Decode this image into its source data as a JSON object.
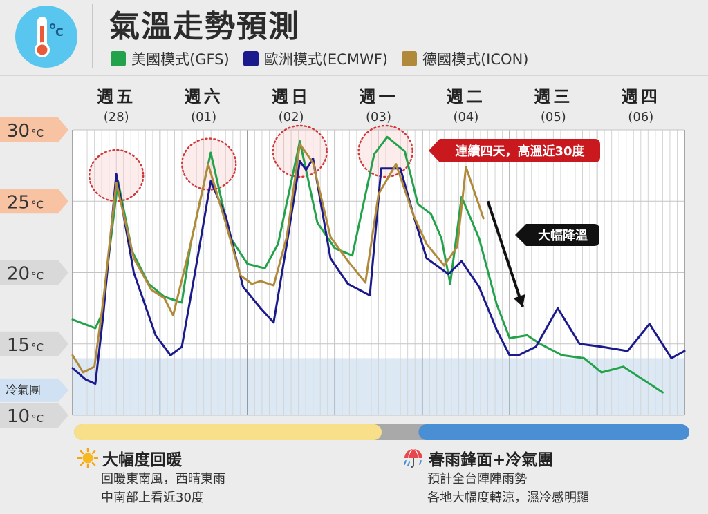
{
  "header": {
    "title": "氣溫走勢預測",
    "legend": [
      {
        "label": "美國模式(GFS)",
        "color": "#22a24a"
      },
      {
        "label": "歐洲模式(ECMWF)",
        "color": "#1a1a8c"
      },
      {
        "label": "德國模式(ICON)",
        "color": "#b08a3a"
      }
    ]
  },
  "chart_data": {
    "type": "line",
    "title": "氣溫走勢預測",
    "xlabel": "",
    "ylabel": "",
    "ylim": [
      10,
      30
    ],
    "xlim": [
      0,
      7
    ],
    "grid": true,
    "legend_position": "top",
    "y_ticks": [
      {
        "value": 30,
        "label": "30",
        "unit": "°C"
      },
      {
        "value": 25,
        "label": "25",
        "unit": "°C"
      },
      {
        "value": 20,
        "label": "20",
        "unit": "°C"
      },
      {
        "value": 15,
        "label": "15",
        "unit": "°C"
      },
      {
        "value": 10,
        "label": "10",
        "unit": "°C"
      }
    ],
    "cold_band": {
      "label": "冷氣團",
      "from": 10,
      "to": 14
    },
    "days": [
      {
        "name": "週五",
        "date": "(28)"
      },
      {
        "name": "週六",
        "date": "(01)"
      },
      {
        "name": "週日",
        "date": "(02)"
      },
      {
        "name": "週一",
        "date": "(03)"
      },
      {
        "name": "週二",
        "date": "(04)"
      },
      {
        "name": "週三",
        "date": "(05)"
      },
      {
        "name": "週四",
        "date": "(06)"
      }
    ],
    "series": [
      {
        "name": "美國模式(GFS)",
        "color": "#22a24a",
        "points": [
          [
            0.0,
            16.7
          ],
          [
            0.13,
            16.4
          ],
          [
            0.26,
            16.1
          ],
          [
            0.33,
            17.0
          ],
          [
            0.52,
            26.4
          ],
          [
            0.68,
            21.5
          ],
          [
            0.87,
            19.2
          ],
          [
            1.05,
            18.3
          ],
          [
            1.25,
            17.9
          ],
          [
            1.35,
            22.0
          ],
          [
            1.58,
            28.4
          ],
          [
            1.8,
            22.5
          ],
          [
            2.0,
            20.6
          ],
          [
            2.2,
            20.3
          ],
          [
            2.35,
            22.0
          ],
          [
            2.6,
            29.2
          ],
          [
            2.8,
            23.5
          ],
          [
            3.0,
            21.7
          ],
          [
            3.2,
            21.2
          ],
          [
            3.45,
            28.3
          ],
          [
            3.6,
            29.5
          ],
          [
            3.8,
            28.5
          ],
          [
            3.95,
            24.8
          ],
          [
            4.1,
            24.1
          ],
          [
            4.22,
            22.4
          ],
          [
            4.32,
            19.2
          ],
          [
            4.45,
            25.3
          ],
          [
            4.65,
            22.4
          ],
          [
            4.85,
            17.8
          ],
          [
            5.0,
            15.4
          ],
          [
            5.2,
            15.6
          ],
          [
            5.35,
            15.0
          ],
          [
            5.6,
            14.2
          ],
          [
            5.85,
            14.0
          ],
          [
            6.05,
            13.0
          ],
          [
            6.3,
            13.4
          ],
          [
            6.55,
            12.4
          ],
          [
            6.75,
            11.6
          ]
        ]
      },
      {
        "name": "歐洲模式(ECMWF)",
        "color": "#1a1a8c",
        "points": [
          [
            0.0,
            13.3
          ],
          [
            0.15,
            12.5
          ],
          [
            0.26,
            12.2
          ],
          [
            0.35,
            17.0
          ],
          [
            0.5,
            26.9
          ],
          [
            0.7,
            20.0
          ],
          [
            0.95,
            15.6
          ],
          [
            1.12,
            14.2
          ],
          [
            1.25,
            14.8
          ],
          [
            1.4,
            20.0
          ],
          [
            1.58,
            26.4
          ],
          [
            1.75,
            24.0
          ],
          [
            1.95,
            19.0
          ],
          [
            2.15,
            17.5
          ],
          [
            2.3,
            16.5
          ],
          [
            2.45,
            22.0
          ],
          [
            2.6,
            27.8
          ],
          [
            2.67,
            27.2
          ],
          [
            2.75,
            28.0
          ],
          [
            2.95,
            21.0
          ],
          [
            3.15,
            19.2
          ],
          [
            3.4,
            18.4
          ],
          [
            3.53,
            27.3
          ],
          [
            3.75,
            27.3
          ],
          [
            3.9,
            24.0
          ],
          [
            4.05,
            21.0
          ],
          [
            4.3,
            19.9
          ],
          [
            4.45,
            20.8
          ],
          [
            4.65,
            19.0
          ],
          [
            4.85,
            16.0
          ],
          [
            5.0,
            14.2
          ],
          [
            5.1,
            14.2
          ],
          [
            5.3,
            14.8
          ],
          [
            5.55,
            17.5
          ],
          [
            5.8,
            15.0
          ],
          [
            6.05,
            14.8
          ],
          [
            6.35,
            14.5
          ],
          [
            6.6,
            16.4
          ],
          [
            6.85,
            14.0
          ],
          [
            7.0,
            14.5
          ]
        ]
      },
      {
        "name": "德國模式(ICON)",
        "color": "#b08a3a",
        "points": [
          [
            0.0,
            14.2
          ],
          [
            0.12,
            13.0
          ],
          [
            0.25,
            13.4
          ],
          [
            0.35,
            18.0
          ],
          [
            0.5,
            26.3
          ],
          [
            0.7,
            21.0
          ],
          [
            0.9,
            18.8
          ],
          [
            1.05,
            18.2
          ],
          [
            1.15,
            17.0
          ],
          [
            1.35,
            22.0
          ],
          [
            1.55,
            27.6
          ],
          [
            1.75,
            23.5
          ],
          [
            1.92,
            19.8
          ],
          [
            2.05,
            19.2
          ],
          [
            2.15,
            19.4
          ],
          [
            2.3,
            19.1
          ],
          [
            2.45,
            22.5
          ],
          [
            2.6,
            29.0
          ],
          [
            2.75,
            27.7
          ],
          [
            2.95,
            22.5
          ],
          [
            3.15,
            20.8
          ],
          [
            3.35,
            19.3
          ],
          [
            3.5,
            25.5
          ],
          [
            3.7,
            27.6
          ],
          [
            3.9,
            24.0
          ],
          [
            4.05,
            22.0
          ],
          [
            4.25,
            20.5
          ],
          [
            4.4,
            21.8
          ],
          [
            4.5,
            27.4
          ],
          [
            4.7,
            23.8
          ]
        ]
      }
    ],
    "annotations": [
      {
        "type": "callout",
        "text": "連續四天，高溫近30度",
        "style": "red"
      },
      {
        "type": "callout",
        "text": "大幅降溫",
        "style": "black"
      }
    ],
    "highlights": [
      {
        "x": 0.5,
        "y": 26.8
      },
      {
        "x": 1.56,
        "y": 27.6
      },
      {
        "x": 2.6,
        "y": 28.5
      },
      {
        "x": 3.58,
        "y": 28.5
      }
    ],
    "arrow": {
      "from": [
        4.75,
        25.0
      ],
      "to": [
        5.15,
        17.6
      ]
    }
  },
  "phases": {
    "warm": {
      "title": "大幅度回暖",
      "lines": [
        "回暖東南風，西晴東雨",
        "中南部上看近30度"
      ],
      "icon": "sun-icon",
      "color": "#f8e08a",
      "fraction": 0.5
    },
    "cold": {
      "title": "春雨鋒面+冷氣團",
      "lines": [
        "預計全台陣陣雨勢",
        "各地大幅度轉涼，濕冷感明顯"
      ],
      "icon": "umbrella-rain-icon",
      "color": "#4a8fd4",
      "fraction": 0.44
    }
  }
}
